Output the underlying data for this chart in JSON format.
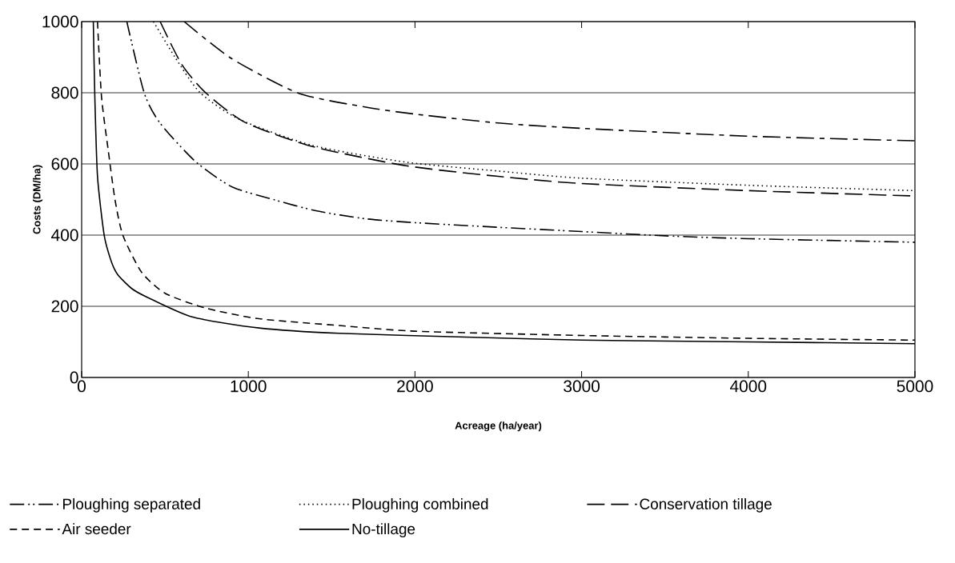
{
  "chart_data": {
    "type": "line",
    "xlabel": "Acreage (ha/year)",
    "ylabel": "Costs (DM/ha)",
    "xlim": [
      0,
      5000
    ],
    "ylim": [
      0,
      1000
    ],
    "xticks": [
      0,
      1000,
      2000,
      3000,
      4000,
      5000
    ],
    "yticks": [
      0,
      200,
      400,
      600,
      800,
      1000
    ],
    "grid": "y",
    "legend": "bottom",
    "series": [
      {
        "name": "Ploughing separated",
        "color": "#000000",
        "line_style": "dashdotdot",
        "x": [
          271,
          375,
          470,
          680,
          900,
          1150,
          1400,
          1700,
          2000,
          2500,
          3000,
          3500,
          4000,
          5000
        ],
        "values": [
          1000,
          800,
          715,
          608,
          536,
          500,
          469,
          446,
          435,
          422,
          410,
          398,
          390,
          380
        ]
      },
      {
        "name": "Ploughing combined",
        "color": "#000000",
        "line_style": "dotted",
        "x": [
          431,
          560,
          711,
          952,
          1385,
          1946,
          2500,
          3000,
          4000,
          5000
        ],
        "values": [
          1000,
          900,
          800,
          724,
          652,
          605,
          580,
          560,
          540,
          525
        ]
      },
      {
        "name": "Conservation tillage",
        "color": "#000000",
        "line_style": "longdash",
        "x": [
          471,
          600,
          744,
          984,
          1385,
          1946,
          2500,
          3000,
          4000,
          5000
        ],
        "values": [
          1000,
          880,
          800,
          716,
          649,
          595,
          565,
          545,
          525,
          510
        ]
      },
      {
        "name": "Air seeder",
        "color": "#000000",
        "line_style": "dashed",
        "x": [
          95,
          119,
          159,
          200,
          247,
          359,
          503,
          744,
          1064,
          1545,
          2000,
          3000,
          4000,
          5000
        ],
        "values": [
          1000,
          790,
          640,
          500,
          400,
          296,
          236,
          195,
          165,
          146,
          130,
          118,
          110,
          105
        ]
      },
      {
        "name": "No-tillage",
        "color": "#000000",
        "line_style": "solid",
        "x": [
          70,
          79,
          95,
          135,
          175,
          215,
          300,
          391,
          663,
          1064,
          1545,
          2346,
          3000,
          4000,
          5000
        ],
        "values": [
          1000,
          790,
          566,
          400,
          330,
          290,
          250,
          226,
          170,
          139,
          124,
          113,
          105,
          100,
          95
        ]
      },
      {
        "color": "#000000",
        "line_style": "dashdot",
        "x": [
          615,
          900,
          1300,
          1700,
          2000,
          2500,
          3000,
          4000,
          5000
        ],
        "values": [
          1000,
          896,
          799,
          760,
          740,
          715,
          700,
          678,
          665
        ]
      }
    ]
  }
}
